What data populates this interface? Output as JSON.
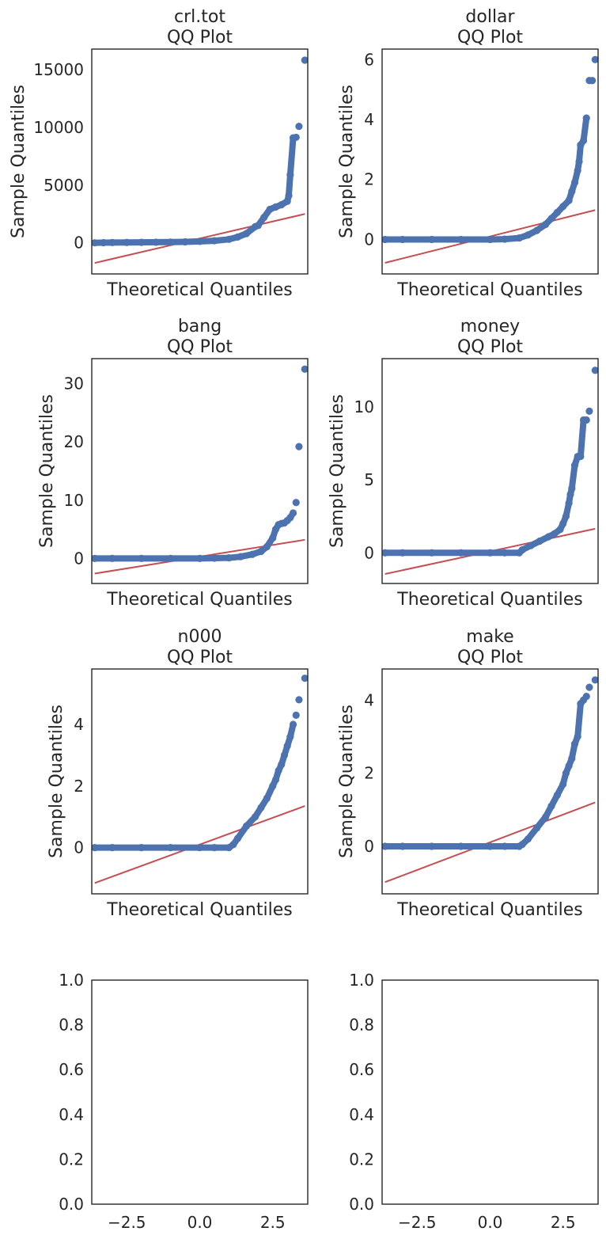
{
  "colors": {
    "points": "#4c72b0",
    "fit_line": "#c44e52",
    "axes": "#262626"
  },
  "chart_data": [
    {
      "type": "scatter",
      "title_line1": "crl.tot",
      "title_line2": "QQ Plot",
      "xlabel": "Theoretical Quantiles",
      "ylabel": "Sample Quantiles",
      "xlim": [
        -3.7,
        3.7
      ],
      "ylim": [
        -2700,
        16800
      ],
      "yticks": [
        0,
        5000,
        10000,
        15000
      ],
      "ytick_labels": [
        "0",
        "5000",
        "10000",
        "15000"
      ],
      "xticks": [],
      "xtick_labels": [],
      "fit_line": {
        "x": [
          -3.6,
          3.6
        ],
        "y": [
          -1750,
          2500
        ]
      },
      "x": [
        -3.6,
        -3.3,
        -3.0,
        -2.5,
        -2.0,
        -1.5,
        -1.0,
        -0.5,
        0.0,
        0.5,
        1.0,
        1.3,
        1.6,
        1.9,
        2.0,
        2.2,
        2.4,
        2.6,
        2.8,
        3.0,
        3.05,
        3.1,
        3.2,
        3.3,
        3.4,
        3.6
      ],
      "y": [
        0,
        10,
        20,
        30,
        40,
        50,
        60,
        80,
        120,
        180,
        300,
        500,
        800,
        1400,
        1500,
        2200,
        2900,
        3100,
        3300,
        3600,
        4100,
        5900,
        9100,
        9150,
        10100,
        15840
      ]
    },
    {
      "type": "scatter",
      "title_line1": "dollar",
      "title_line2": "QQ Plot",
      "xlabel": "Theoretical Quantiles",
      "ylabel": "Sample Quantiles",
      "xlim": [
        -3.7,
        3.7
      ],
      "ylim": [
        -1.15,
        6.35
      ],
      "yticks": [
        0,
        2,
        4,
        6
      ],
      "ytick_labels": [
        "0",
        "2",
        "4",
        "6"
      ],
      "xticks": [],
      "xtick_labels": [],
      "fit_line": {
        "x": [
          -3.6,
          3.6
        ],
        "y": [
          -0.78,
          0.98
        ]
      },
      "x": [
        -3.6,
        -3.0,
        -2.0,
        -1.0,
        0.0,
        0.5,
        1.0,
        1.3,
        1.6,
        1.9,
        2.1,
        2.3,
        2.5,
        2.7,
        2.8,
        2.9,
        3.0,
        3.05,
        3.1,
        3.2,
        3.3,
        3.4,
        3.5,
        3.6
      ],
      "y": [
        0,
        0,
        0,
        0,
        0,
        0.01,
        0.05,
        0.15,
        0.3,
        0.5,
        0.7,
        0.9,
        1.1,
        1.3,
        1.6,
        1.9,
        2.3,
        2.6,
        3.15,
        3.3,
        4.05,
        5.3,
        5.3,
        6.0
      ]
    },
    {
      "type": "scatter",
      "title_line1": "bang",
      "title_line2": "QQ Plot",
      "xlabel": "Theoretical Quantiles",
      "ylabel": "Sample Quantiles",
      "xlim": [
        -3.7,
        3.7
      ],
      "ylim": [
        -4.3,
        34.3
      ],
      "yticks": [
        0,
        10,
        20,
        30
      ],
      "ytick_labels": [
        "0",
        "10",
        "20",
        "30"
      ],
      "xticks": [],
      "xtick_labels": [],
      "fit_line": {
        "x": [
          -3.6,
          3.6
        ],
        "y": [
          -2.6,
          3.2
        ]
      },
      "x": [
        -3.6,
        -3.0,
        -2.0,
        -1.0,
        0.0,
        0.5,
        1.0,
        1.4,
        1.8,
        2.1,
        2.3,
        2.5,
        2.6,
        2.7,
        2.8,
        2.9,
        3.0,
        3.1,
        3.2,
        3.3,
        3.4,
        3.6
      ],
      "y": [
        0,
        0,
        0,
        0,
        0,
        0.05,
        0.1,
        0.3,
        0.7,
        1.2,
        2.0,
        3.5,
        5.0,
        5.8,
        6.0,
        6.1,
        6.5,
        7.0,
        7.8,
        9.6,
        19.2,
        32.5
      ]
    },
    {
      "type": "scatter",
      "title_line1": "money",
      "title_line2": "QQ Plot",
      "xlabel": "Theoretical Quantiles",
      "ylabel": "Sample Quantiles",
      "xlim": [
        -3.7,
        3.7
      ],
      "ylim": [
        -2.1,
        13.3
      ],
      "yticks": [
        0,
        5,
        10
      ],
      "ytick_labels": [
        "0",
        "5",
        "10"
      ],
      "xticks": [],
      "xtick_labels": [],
      "fit_line": {
        "x": [
          -3.6,
          3.6
        ],
        "y": [
          -1.45,
          1.65
        ]
      },
      "x": [
        -3.6,
        -3.0,
        -2.0,
        -1.0,
        0.0,
        0.5,
        1.0,
        1.1,
        1.4,
        1.7,
        2.0,
        2.2,
        2.4,
        2.5,
        2.6,
        2.7,
        2.75,
        2.8,
        2.9,
        3.0,
        3.1,
        3.2,
        3.3,
        3.4,
        3.6
      ],
      "y": [
        0,
        0,
        0,
        0,
        0,
        0,
        0,
        0.2,
        0.5,
        0.8,
        1.1,
        1.3,
        1.6,
        2.0,
        2.5,
        3.4,
        4.0,
        4.4,
        6.0,
        6.6,
        6.6,
        9.1,
        9.1,
        9.7,
        12.5
      ]
    },
    {
      "type": "scatter",
      "title_line1": "n000",
      "title_line2": "QQ Plot",
      "xlabel": "Theoretical Quantiles",
      "ylabel": "Sample Quantiles",
      "xlim": [
        -3.7,
        3.7
      ],
      "ylim": [
        -1.5,
        5.8
      ],
      "yticks": [
        0,
        2,
        4
      ],
      "ytick_labels": [
        "0",
        "2",
        "4"
      ],
      "xticks": [],
      "xtick_labels": [],
      "fit_line": {
        "x": [
          -3.6,
          3.6
        ],
        "y": [
          -1.15,
          1.35
        ]
      },
      "x": [
        -3.6,
        -3.0,
        -2.0,
        -1.0,
        0.0,
        0.5,
        1.0,
        1.15,
        1.3,
        1.6,
        1.9,
        2.1,
        2.3,
        2.5,
        2.6,
        2.7,
        2.8,
        2.9,
        3.0,
        3.1,
        3.2,
        3.3,
        3.4,
        3.6
      ],
      "y": [
        0,
        0,
        0,
        0,
        0,
        0,
        0,
        0.1,
        0.3,
        0.7,
        1.0,
        1.3,
        1.6,
        2.0,
        2.2,
        2.5,
        2.7,
        3.0,
        3.3,
        3.6,
        4.0,
        4.3,
        4.8,
        5.5
      ]
    },
    {
      "type": "scatter",
      "title_line1": "make",
      "title_line2": "QQ Plot",
      "xlabel": "Theoretical Quantiles",
      "ylabel": "Sample Quantiles",
      "xlim": [
        -3.7,
        3.7
      ],
      "ylim": [
        -1.3,
        4.85
      ],
      "yticks": [
        0,
        2,
        4
      ],
      "ytick_labels": [
        "0",
        "2",
        "4"
      ],
      "xticks": [],
      "xtick_labels": [],
      "fit_line": {
        "x": [
          -3.6,
          3.6
        ],
        "y": [
          -0.98,
          1.2
        ]
      },
      "x": [
        -3.6,
        -3.0,
        -2.0,
        -1.0,
        0.0,
        0.5,
        1.0,
        1.1,
        1.3,
        1.6,
        1.9,
        2.1,
        2.3,
        2.5,
        2.6,
        2.7,
        2.8,
        2.9,
        3.0,
        3.1,
        3.2,
        3.3,
        3.4,
        3.6
      ],
      "y": [
        0,
        0,
        0,
        0,
        0,
        0,
        0,
        0.05,
        0.2,
        0.5,
        0.8,
        1.1,
        1.4,
        1.7,
        2.0,
        2.2,
        2.4,
        2.8,
        3.0,
        3.9,
        4.0,
        4.1,
        4.35,
        4.55
      ]
    },
    {
      "type": "scatter",
      "title_line1": "",
      "title_line2": "",
      "xlabel": "",
      "ylabel": "",
      "xlim": [
        -3.7,
        3.7
      ],
      "ylim": [
        0,
        1
      ],
      "yticks": [
        0,
        0.2,
        0.4,
        0.6,
        0.8,
        1.0
      ],
      "ytick_labels": [
        "0.0",
        "0.2",
        "0.4",
        "0.6",
        "0.8",
        "1.0"
      ],
      "xticks": [
        -2.5,
        0,
        2.5
      ],
      "xtick_labels": [
        "−2.5",
        "0.0",
        "2.5"
      ],
      "x": [],
      "y": []
    },
    {
      "type": "scatter",
      "title_line1": "",
      "title_line2": "",
      "xlabel": "",
      "ylabel": "",
      "xlim": [
        -3.7,
        3.7
      ],
      "ylim": [
        0,
        1
      ],
      "yticks": [
        0,
        0.2,
        0.4,
        0.6,
        0.8,
        1.0
      ],
      "ytick_labels": [
        "0.0",
        "0.2",
        "0.4",
        "0.6",
        "0.8",
        "1.0"
      ],
      "xticks": [
        -2.5,
        0,
        2.5
      ],
      "xtick_labels": [
        "−2.5",
        "0.0",
        "2.5"
      ],
      "x": [],
      "y": []
    }
  ]
}
